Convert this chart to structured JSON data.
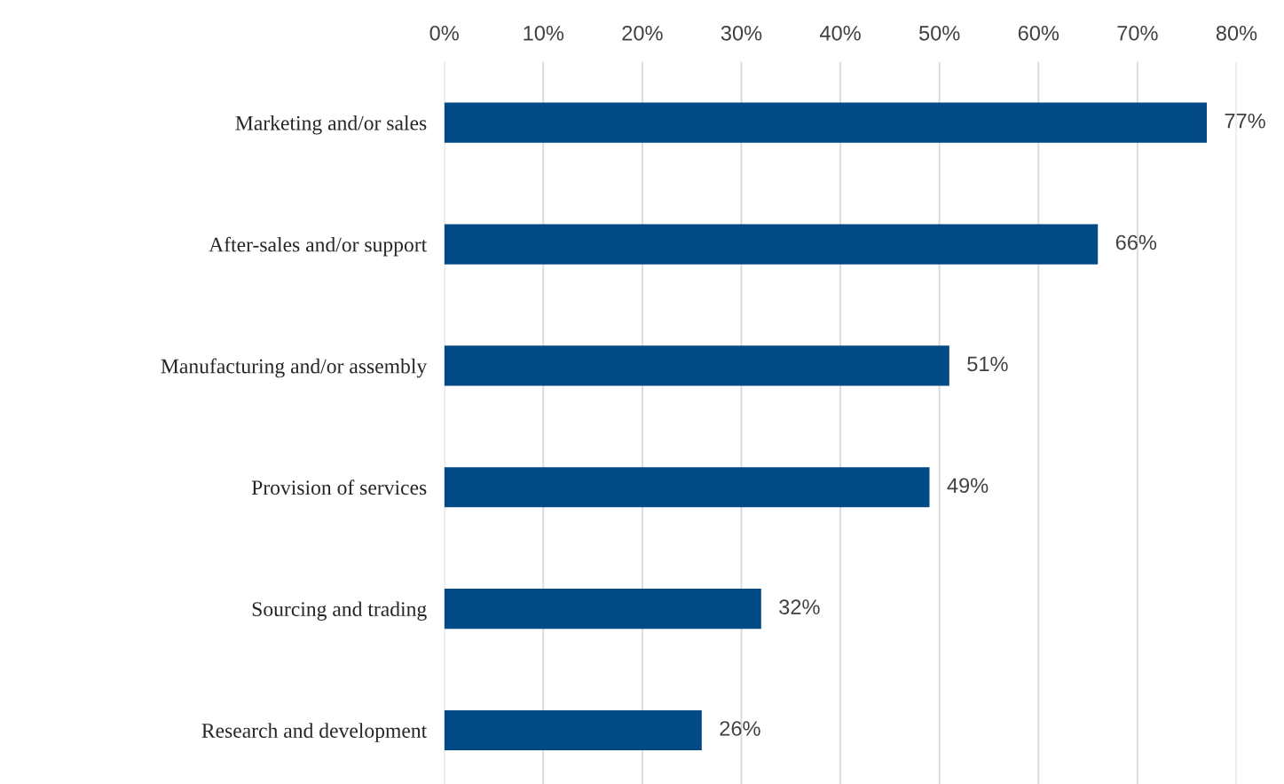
{
  "chart_data": {
    "type": "bar",
    "orientation": "horizontal",
    "categories": [
      "Marketing and/or sales",
      "After-sales and/or support",
      "Manufacturing and/or assembly",
      "Provision of services",
      "Sourcing and trading",
      "Research and development"
    ],
    "values": [
      77,
      66,
      51,
      49,
      32,
      26
    ],
    "value_labels": [
      "77%",
      "66%",
      "51%",
      "49%",
      "32%",
      "26%"
    ],
    "color": "#024a86",
    "xlim": [
      0,
      80
    ],
    "xticks": [
      {
        "value": 0,
        "label": "0%"
      },
      {
        "value": 10,
        "label": "10%"
      },
      {
        "value": 20,
        "label": "20%"
      },
      {
        "value": 30,
        "label": "30%"
      },
      {
        "value": 40,
        "label": "40%"
      },
      {
        "value": 50,
        "label": "50%"
      },
      {
        "value": 60,
        "label": "60%"
      },
      {
        "value": 70,
        "label": "70%"
      },
      {
        "value": 80,
        "label": "80%"
      }
    ],
    "grid": "x",
    "legend": false
  }
}
